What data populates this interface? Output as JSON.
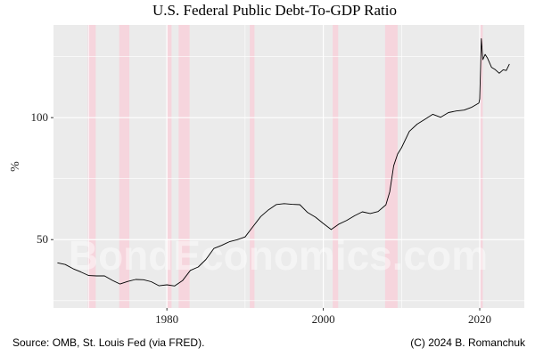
{
  "chart_data": {
    "type": "line",
    "title": "U.S. Federal Public Debt-To-GDP Ratio",
    "xlabel": "",
    "ylabel": "%",
    "xlim": [
      1965.5,
      2025.7
    ],
    "ylim": [
      22,
      138
    ],
    "x_ticks": [
      1980,
      2000,
      2020
    ],
    "y_ticks": [
      50,
      100
    ],
    "grid": true,
    "recessions": [
      {
        "start": 1969.9,
        "end": 1970.9
      },
      {
        "start": 1973.9,
        "end": 1975.2
      },
      {
        "start": 1980.0,
        "end": 1980.6
      },
      {
        "start": 1981.5,
        "end": 1982.9
      },
      {
        "start": 1990.6,
        "end": 1991.2
      },
      {
        "start": 2001.2,
        "end": 2001.9
      },
      {
        "start": 2007.9,
        "end": 2009.5
      },
      {
        "start": 2020.1,
        "end": 2020.4
      }
    ],
    "series": [
      {
        "color": "#000000",
        "points": [
          [
            1966.0,
            40.5
          ],
          [
            1967.0,
            39.5
          ],
          [
            1968.0,
            38.5
          ],
          [
            1969.0,
            36.5
          ],
          [
            1970.0,
            35.2
          ],
          [
            1971.0,
            35.5
          ],
          [
            1972.0,
            34.8
          ],
          [
            1973.0,
            33.5
          ],
          [
            1974.0,
            32.0
          ],
          [
            1975.0,
            32.5
          ],
          [
            1976.0,
            34.0
          ],
          [
            1977.0,
            33.5
          ],
          [
            1978.0,
            32.5
          ],
          [
            1979.0,
            31.5
          ],
          [
            1980.0,
            31.2
          ],
          [
            1981.0,
            31.0
          ],
          [
            1982.0,
            33.5
          ],
          [
            1983.0,
            37.0
          ],
          [
            1984.0,
            39.0
          ],
          [
            1985.0,
            42.0
          ],
          [
            1986.0,
            46.0
          ],
          [
            1987.0,
            48.0
          ],
          [
            1988.0,
            49.0
          ],
          [
            1989.0,
            49.8
          ],
          [
            1990.0,
            51.5
          ],
          [
            1991.0,
            55.0
          ],
          [
            1992.0,
            59.5
          ],
          [
            1993.0,
            62.5
          ],
          [
            1994.0,
            64.0
          ],
          [
            1995.0,
            65.0
          ],
          [
            1996.0,
            64.5
          ],
          [
            1997.0,
            64.0
          ],
          [
            1998.0,
            61.5
          ],
          [
            1999.0,
            59.0
          ],
          [
            2000.0,
            56.5
          ],
          [
            2001.0,
            54.5
          ],
          [
            2002.0,
            56.0
          ],
          [
            2003.0,
            58.0
          ],
          [
            2004.0,
            60.0
          ],
          [
            2005.0,
            61.0
          ],
          [
            2006.0,
            61.0
          ],
          [
            2007.0,
            61.5
          ],
          [
            2008.0,
            64.0
          ],
          [
            2008.5,
            70.0
          ],
          [
            2009.0,
            80.0
          ],
          [
            2009.5,
            85.0
          ],
          [
            2010.0,
            88.0
          ],
          [
            2011.0,
            94.0
          ],
          [
            2012.0,
            97.5
          ],
          [
            2013.0,
            99.5
          ],
          [
            2014.0,
            101.0
          ],
          [
            2015.0,
            100.5
          ],
          [
            2016.0,
            102.0
          ],
          [
            2017.0,
            102.5
          ],
          [
            2018.0,
            103.5
          ],
          [
            2019.0,
            104.0
          ],
          [
            2019.9,
            106.0
          ],
          [
            2020.0,
            108.0
          ],
          [
            2020.2,
            132.0
          ],
          [
            2020.4,
            124.0
          ],
          [
            2020.7,
            126.0
          ],
          [
            2021.0,
            124.0
          ],
          [
            2021.5,
            121.0
          ],
          [
            2022.0,
            119.5
          ],
          [
            2022.5,
            118.0
          ],
          [
            2023.0,
            120.0
          ],
          [
            2023.4,
            119.0
          ],
          [
            2023.8,
            122.0
          ]
        ]
      }
    ],
    "background_color": "#ebebeb",
    "recession_color": "#f6d5dd"
  },
  "watermark": "BondEconomics.com",
  "source_note": "Source: OMB, St. Louis Fed (via FRED).",
  "copyright_note": "(C) 2024  B. Romanchuk"
}
